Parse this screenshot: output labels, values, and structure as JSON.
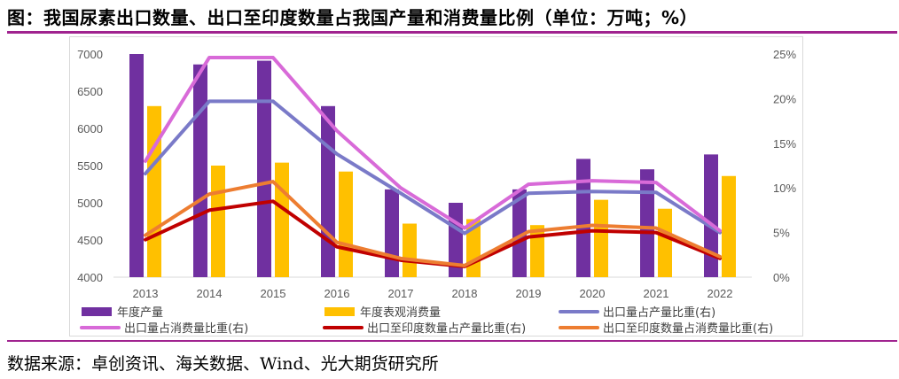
{
  "title": "图：我国尿素出口数量、出口至印度数量占我国产量和消费量比例（单位：万吨；%）",
  "source": "数据来源：卓创资讯、海关数据、Wind、光大期货研究所",
  "chart_data": {
    "type": "bar",
    "categories": [
      "2013",
      "2014",
      "2015",
      "2016",
      "2017",
      "2018",
      "2019",
      "2020",
      "2021",
      "2022"
    ],
    "y_left": {
      "min": 4000,
      "max": 7000,
      "ticks": [
        "4000",
        "4500",
        "5000",
        "5500",
        "6000",
        "6500",
        "7000"
      ],
      "tick_values": [
        4000,
        4500,
        5000,
        5500,
        6000,
        6500,
        7000
      ]
    },
    "y_right": {
      "min": 0,
      "max": 25,
      "ticks": [
        "0%",
        "5%",
        "10%",
        "15%",
        "20%",
        "25%"
      ],
      "tick_values": [
        0,
        5,
        10,
        15,
        20,
        25
      ]
    },
    "bar_series": [
      {
        "name": "年度产量",
        "color": "#7030a0",
        "values": [
          7000,
          6860,
          6910,
          6300,
          5180,
          5000,
          5180,
          5590,
          5450,
          5650
        ]
      },
      {
        "name": "年度表观消费量",
        "color": "#ffc000",
        "values": [
          6300,
          5500,
          5540,
          5420,
          4720,
          4780,
          4700,
          5040,
          4920,
          5360
        ]
      }
    ],
    "line_series": [
      {
        "name": "出口量占产量比重(右)",
        "color": "#7a7ac8",
        "values": [
          11.6,
          19.7,
          19.7,
          13.8,
          9.4,
          4.9,
          9.4,
          9.6,
          9.5,
          5.0
        ]
      },
      {
        "name": "出口量占消费量比重(右)",
        "color": "#d86ad8",
        "values": [
          13.0,
          24.6,
          24.6,
          16.4,
          10.0,
          5.5,
          10.4,
          10.8,
          10.6,
          5.2
        ]
      },
      {
        "name": "出口至印度数量占产量比重(右)",
        "color": "#c00000",
        "values": [
          4.2,
          7.5,
          8.5,
          3.4,
          1.9,
          1.2,
          4.5,
          5.2,
          5.0,
          2.1
        ]
      },
      {
        "name": "出口至印度数量占消费量比重(右)",
        "color": "#ed7d31",
        "values": [
          4.7,
          9.3,
          10.7,
          3.9,
          2.1,
          1.3,
          5.1,
          5.8,
          5.5,
          2.3
        ]
      }
    ],
    "legend": {
      "position": "bottom",
      "entries": [
        "年度产量",
        "年度表观消费量",
        "出口量占产量比重(右)",
        "出口量占消费量比重(右)",
        "出口至印度数量占产量比重(右)",
        "出口至印度数量占消费量比重(右)"
      ]
    }
  }
}
